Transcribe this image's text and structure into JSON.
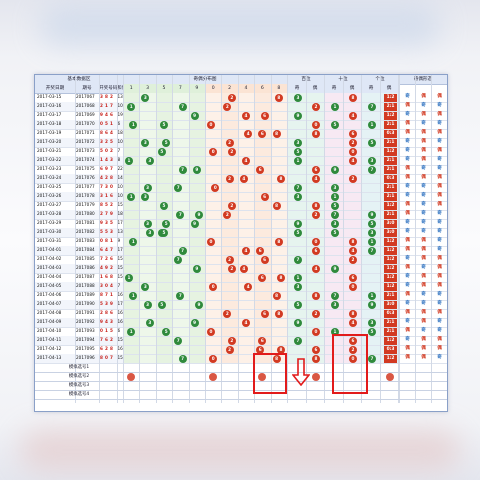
{
  "header": {
    "basic_data": "基本数据区",
    "dist": "奇偶分布图",
    "hundreds": "百位",
    "tens": "十位",
    "units": "个位",
    "ratio": "奇偶比",
    "shape": "奇偶形态"
  },
  "subheader": {
    "date": "开奖日期",
    "issue": "期号",
    "code": "开奖号码",
    "sum": "和值",
    "digits": [
      "1",
      "3",
      "5",
      "7",
      "9",
      "0",
      "2",
      "4",
      "6",
      "8"
    ],
    "odd": "奇",
    "even": "偶",
    "ratios": [
      "0:3",
      "1:2",
      "2:1",
      "3:0"
    ]
  },
  "rows": [
    {
      "date": "2017-03-15",
      "issue": "2017067",
      "code": [
        "3",
        "8",
        "2"
      ],
      "sum": "13",
      "ratio": "1:2",
      "shape": [
        "奇",
        "偶",
        "偶"
      ]
    },
    {
      "date": "2017-03-16",
      "issue": "2017068",
      "code": [
        "2",
        "1",
        "7"
      ],
      "sum": "10",
      "ratio": "2:1",
      "shape": [
        "偶",
        "奇",
        "奇"
      ]
    },
    {
      "date": "2017-03-17",
      "issue": "2017069",
      "code": [
        "9",
        "4",
        "6"
      ],
      "sum": "19",
      "ratio": "1:2",
      "shape": [
        "奇",
        "偶",
        "偶"
      ]
    },
    {
      "date": "2017-03-18",
      "issue": "2017070",
      "code": [
        "0",
        "5",
        "1"
      ],
      "sum": "6",
      "ratio": "2:1",
      "shape": [
        "偶",
        "奇",
        "奇"
      ]
    },
    {
      "date": "2017-03-19",
      "issue": "2017071",
      "code": [
        "8",
        "6",
        "4"
      ],
      "sum": "18",
      "ratio": "0:3",
      "shape": [
        "偶",
        "偶",
        "偶"
      ]
    },
    {
      "date": "2017-03-20",
      "issue": "2017072",
      "code": [
        "3",
        "2",
        "5"
      ],
      "sum": "10",
      "ratio": "2:1",
      "shape": [
        "奇",
        "偶",
        "奇"
      ]
    },
    {
      "date": "2017-03-21",
      "issue": "2017073",
      "code": [
        "5",
        "0",
        "2"
      ],
      "sum": "7",
      "ratio": "1:2",
      "shape": [
        "奇",
        "偶",
        "偶"
      ]
    },
    {
      "date": "2017-03-22",
      "issue": "2017074",
      "code": [
        "1",
        "4",
        "3"
      ],
      "sum": "8",
      "ratio": "2:1",
      "shape": [
        "奇",
        "偶",
        "奇"
      ]
    },
    {
      "date": "2017-03-23",
      "issue": "2017075",
      "code": [
        "6",
        "9",
        "7"
      ],
      "sum": "22",
      "ratio": "2:1",
      "shape": [
        "偶",
        "奇",
        "奇"
      ]
    },
    {
      "date": "2017-03-24",
      "issue": "2017076",
      "code": [
        "4",
        "2",
        "8"
      ],
      "sum": "14",
      "ratio": "0:3",
      "shape": [
        "偶",
        "偶",
        "偶"
      ]
    },
    {
      "date": "2017-03-25",
      "issue": "2017077",
      "code": [
        "7",
        "3",
        "0"
      ],
      "sum": "10",
      "ratio": "2:1",
      "shape": [
        "奇",
        "奇",
        "偶"
      ]
    },
    {
      "date": "2017-03-26",
      "issue": "2017078",
      "code": [
        "3",
        "1",
        "6"
      ],
      "sum": "10",
      "ratio": "2:1",
      "shape": [
        "奇",
        "奇",
        "偶"
      ]
    },
    {
      "date": "2017-03-27",
      "issue": "2017079",
      "code": [
        "8",
        "5",
        "2"
      ],
      "sum": "15",
      "ratio": "1:2",
      "shape": [
        "偶",
        "奇",
        "偶"
      ]
    },
    {
      "date": "2017-03-28",
      "issue": "2017080",
      "code": [
        "2",
        "7",
        "9"
      ],
      "sum": "18",
      "ratio": "2:1",
      "shape": [
        "偶",
        "奇",
        "奇"
      ]
    },
    {
      "date": "2017-03-29",
      "issue": "2017081",
      "code": [
        "9",
        "3",
        "5"
      ],
      "sum": "17",
      "ratio": "3:0",
      "shape": [
        "奇",
        "奇",
        "奇"
      ]
    },
    {
      "date": "2017-03-30",
      "issue": "2017082",
      "code": [
        "5",
        "5",
        "3"
      ],
      "sum": "13",
      "ratio": "3:0",
      "shape": [
        "奇",
        "奇",
        "奇"
      ]
    },
    {
      "date": "2017-03-31",
      "issue": "2017083",
      "code": [
        "0",
        "8",
        "1"
      ],
      "sum": "9",
      "ratio": "1:2",
      "shape": [
        "偶",
        "偶",
        "奇"
      ]
    },
    {
      "date": "2017-04-01",
      "issue": "2017084",
      "code": [
        "6",
        "4",
        "7"
      ],
      "sum": "17",
      "ratio": "1:2",
      "shape": [
        "偶",
        "偶",
        "奇"
      ]
    },
    {
      "date": "2017-04-02",
      "issue": "2017085",
      "code": [
        "7",
        "2",
        "6"
      ],
      "sum": "15",
      "ratio": "1:2",
      "shape": [
        "奇",
        "偶",
        "偶"
      ]
    },
    {
      "date": "2017-04-03",
      "issue": "2017086",
      "code": [
        "4",
        "9",
        "2"
      ],
      "sum": "15",
      "ratio": "1:2",
      "shape": [
        "偶",
        "奇",
        "偶"
      ]
    },
    {
      "date": "2017-04-04",
      "issue": "2017087",
      "code": [
        "1",
        "6",
        "8"
      ],
      "sum": "15",
      "ratio": "1:2",
      "shape": [
        "奇",
        "偶",
        "偶"
      ]
    },
    {
      "date": "2017-04-05",
      "issue": "2017088",
      "code": [
        "3",
        "0",
        "4"
      ],
      "sum": "7",
      "ratio": "1:2",
      "shape": [
        "奇",
        "偶",
        "偶"
      ]
    },
    {
      "date": "2017-04-06",
      "issue": "2017089",
      "code": [
        "8",
        "7",
        "1"
      ],
      "sum": "16",
      "ratio": "2:1",
      "shape": [
        "偶",
        "奇",
        "奇"
      ]
    },
    {
      "date": "2017-04-07",
      "issue": "2017090",
      "code": [
        "5",
        "3",
        "9"
      ],
      "sum": "17",
      "ratio": "3:0",
      "shape": [
        "奇",
        "奇",
        "奇"
      ]
    },
    {
      "date": "2017-04-08",
      "issue": "2017091",
      "code": [
        "2",
        "8",
        "6"
      ],
      "sum": "16",
      "ratio": "0:3",
      "shape": [
        "偶",
        "偶",
        "偶"
      ]
    },
    {
      "date": "2017-04-09",
      "issue": "2017092",
      "code": [
        "9",
        "4",
        "3"
      ],
      "sum": "16",
      "ratio": "2:1",
      "shape": [
        "奇",
        "偶",
        "奇"
      ]
    },
    {
      "date": "2017-04-10",
      "issue": "2017093",
      "code": [
        "0",
        "1",
        "5"
      ],
      "sum": "6",
      "ratio": "2:1",
      "shape": [
        "偶",
        "奇",
        "奇"
      ]
    },
    {
      "date": "2017-04-11",
      "issue": "2017094",
      "code": [
        "7",
        "6",
        "2"
      ],
      "sum": "15",
      "ratio": "1:2",
      "shape": [
        "奇",
        "偶",
        "偶"
      ]
    },
    {
      "date": "2017-04-12",
      "issue": "2017095",
      "code": [
        "6",
        "2",
        "8"
      ],
      "sum": "16",
      "ratio": "0:3",
      "shape": [
        "偶",
        "偶",
        "偶"
      ]
    },
    {
      "date": "2017-04-13",
      "issue": "2017096",
      "code": [
        "8",
        "0",
        "7"
      ],
      "sum": "15",
      "ratio": "1:2",
      "shape": [
        "偶",
        "偶",
        "奇"
      ]
    }
  ],
  "sim_rows": [
    "模拟选号1",
    "模拟选号2",
    "模拟选号3",
    "模拟选号4"
  ],
  "sim_picks": [
    {
      "row": 1,
      "col": "dist-1"
    },
    {
      "row": 1,
      "col": "dist-0"
    },
    {
      "row": 1,
      "col": "dist-6"
    },
    {
      "row": 1,
      "col": "h-even"
    },
    {
      "row": 1,
      "col": "u-even"
    }
  ],
  "colors": {
    "odd_ball": "#2f8a3c",
    "even_ball": "#d23a22",
    "odd_text": "#2a6fbf",
    "even_text": "#d23a22",
    "highlight_box": "#e21b1b"
  }
}
